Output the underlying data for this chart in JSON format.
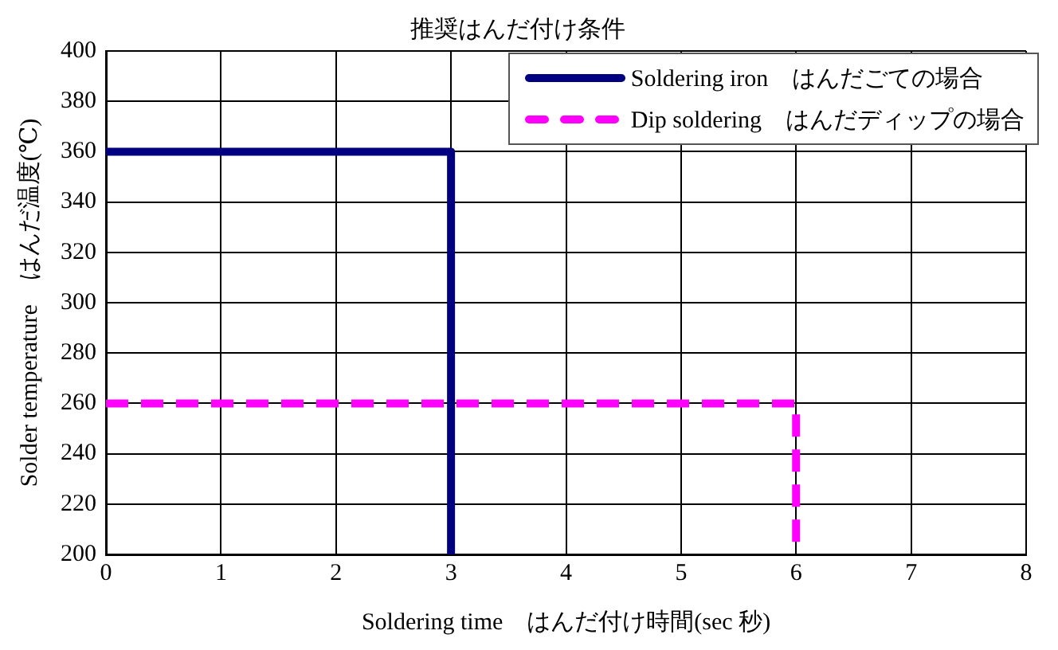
{
  "chart_data": {
    "type": "line",
    "title": "推奨はんだ付け条件",
    "xlabel": "Soldering time　はんだ付け時間(sec 秒)",
    "ylabel": "Solder temperature　はんだ温度(℃)",
    "series": [
      {
        "name": "Soldering iron　はんだごての場合",
        "color": "#000080",
        "x": [
          0,
          3,
          3
        ],
        "values": [
          360,
          360,
          200
        ],
        "line_style": "solid"
      },
      {
        "name": "Dip soldering　はんだディップの場合",
        "color": "#ff00ff",
        "x": [
          0,
          6,
          6
        ],
        "values": [
          260,
          260,
          200
        ],
        "line_style": "dashed"
      }
    ],
    "xlim": [
      0,
      8
    ],
    "xticks": [
      0,
      1,
      2,
      3,
      4,
      5,
      6,
      7,
      8
    ],
    "ylim": [
      200,
      400
    ],
    "yticks": [
      200,
      220,
      240,
      260,
      280,
      300,
      320,
      340,
      360,
      380,
      400
    ],
    "grid": true,
    "legend": "top right",
    "marker": "none"
  }
}
